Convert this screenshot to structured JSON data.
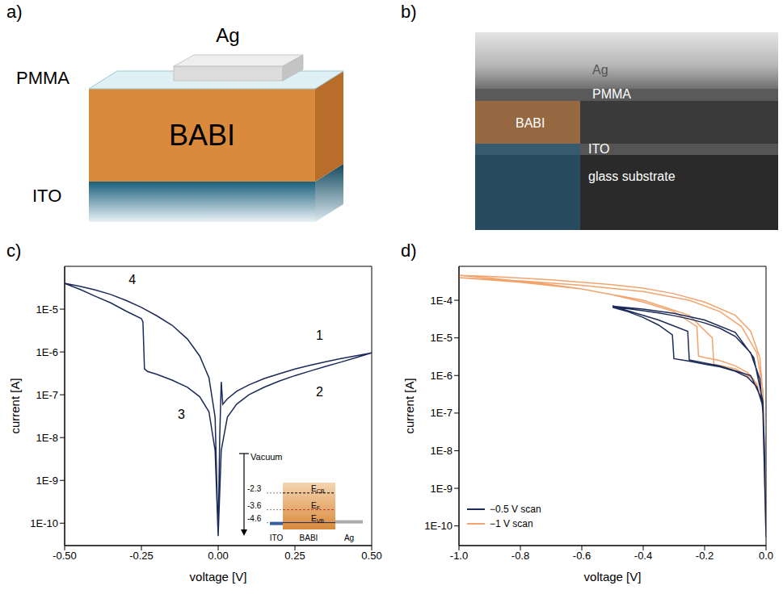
{
  "panel_a": {
    "letter": "a)",
    "labels": {
      "top_contact": "Ag",
      "coating": "PMMA",
      "film": "BABI",
      "electrode": "ITO"
    }
  },
  "panel_b": {
    "letter": "b)",
    "labels": {
      "top_contact": "Ag",
      "coating": "PMMA",
      "film": "BABI",
      "electrode": "ITO",
      "substrate": "glass substrate"
    }
  },
  "chart_data": [
    {
      "letter": "c)",
      "type": "line",
      "x_label": "voltage [V]",
      "y_label": "current [A]",
      "log": "y",
      "grid": false,
      "xlim": [
        -0.5,
        0.5
      ],
      "xticks": [
        {
          "value": -0.5,
          "label": "-0.50"
        },
        {
          "value": -0.25,
          "label": "-0.25"
        },
        {
          "value": 0,
          "label": "0.00"
        },
        {
          "value": 0.25,
          "label": "0.25"
        },
        {
          "value": 0.5,
          "label": "0.50"
        }
      ],
      "ylim": [
        3e-11,
        0.0001
      ],
      "yticks": [
        {
          "value": 1e-10,
          "label": "1E-10"
        },
        {
          "value": 1e-09,
          "label": "1E-9"
        },
        {
          "value": 1e-08,
          "label": "1E-8"
        },
        {
          "value": 1e-07,
          "label": "1E-7"
        },
        {
          "value": 1e-06,
          "label": "1E-6"
        },
        {
          "value": 1e-05,
          "label": "1E-5"
        }
      ],
      "series": [
        {
          "color": "#1c2a5a",
          "x": [
            0,
            0.005,
            0.01,
            0.015,
            0.03,
            0.06,
            0.1,
            0.15,
            0.2,
            0.25,
            0.3,
            0.35,
            0.4,
            0.45,
            0.5,
            0.45,
            0.4,
            0.35,
            0.3,
            0.25,
            0.2,
            0.15,
            0.1,
            0.06,
            0.03,
            0.01,
            0,
            -0.01,
            -0.03,
            -0.06,
            -0.1,
            -0.15,
            -0.2,
            -0.23,
            -0.24,
            -0.245,
            -0.25,
            -0.3,
            -0.35,
            -0.4,
            -0.45,
            -0.5,
            -0.45,
            -0.4,
            -0.35,
            -0.3,
            -0.25,
            -0.2,
            -0.15,
            -0.1,
            -0.06,
            -0.03,
            -0.01,
            0
          ],
          "values": [
            5e-11,
            1e-08,
            2e-07,
            6e-08,
            8e-08,
            1.2e-07,
            1.7e-07,
            2.4e-07,
            3.1e-07,
            4e-07,
            4.9e-07,
            5.9e-07,
            7e-07,
            8.2e-07,
            9.5e-07,
            7.4e-07,
            5.8e-07,
            4.6e-07,
            3.6e-07,
            2.8e-07,
            2.1e-07,
            1.5e-07,
            1e-07,
            6e-08,
            3e-08,
            5e-09,
            5e-11,
            5e-09,
            4e-08,
            9e-08,
            1.5e-07,
            2.2e-07,
            3e-07,
            3.5e-07,
            4e-07,
            5e-06,
            6e-06,
            9e-06,
            1.4e-05,
            2e-05,
            2.9e-05,
            4e-05,
            3.4e-05,
            2.8e-05,
            2.2e-05,
            1.6e-05,
            1.1e-05,
            7e-06,
            4.2e-06,
            2e-06,
            8e-07,
            2.5e-07,
            3e-08,
            5e-11
          ]
        }
      ],
      "annotations": [
        {
          "text": "1",
          "x": 0.33,
          "y": 2.5e-06
        },
        {
          "text": "2",
          "x": 0.33,
          "y": 1.2e-07
        },
        {
          "text": "3",
          "x": -0.12,
          "y": 3.5e-08
        },
        {
          "text": "4",
          "x": -0.28,
          "y": 5e-05
        }
      ],
      "inset": {
        "axis_label": "Vacuum",
        "levels": [
          {
            "value": -2.3,
            "symbol": "E",
            "sub": "CB"
          },
          {
            "value": -3.6,
            "symbol": "E",
            "sub": "F"
          },
          {
            "value": -4.6,
            "symbol": "E",
            "sub": "VB"
          }
        ],
        "materials": [
          "ITO",
          "BABI",
          "Ag"
        ]
      }
    },
    {
      "letter": "d)",
      "type": "line",
      "x_label": "voltage [V]",
      "y_label": "current [A]",
      "log": "y",
      "grid": false,
      "legend": "lower left",
      "xlim": [
        -1.0,
        0.0
      ],
      "xticks": [
        {
          "value": -1.0,
          "label": "-1.0"
        },
        {
          "value": -0.8,
          "label": "-0.8"
        },
        {
          "value": -0.6,
          "label": "-0.6"
        },
        {
          "value": -0.4,
          "label": "-0.4"
        },
        {
          "value": -0.2,
          "label": "-0.2"
        },
        {
          "value": 0,
          "label": "0.0"
        }
      ],
      "ylim": [
        3e-11,
        0.0008
      ],
      "yticks": [
        {
          "value": 1e-10,
          "label": "1E-10"
        },
        {
          "value": 1e-09,
          "label": "1E-9"
        },
        {
          "value": 1e-08,
          "label": "1E-8"
        },
        {
          "value": 1e-07,
          "label": "1E-7"
        },
        {
          "value": 1e-06,
          "label": "1E-6"
        },
        {
          "value": 1e-05,
          "label": "1E-5"
        },
        {
          "value": 0.0001,
          "label": "1E-4"
        }
      ],
      "series": [
        {
          "name": "−0.5 V scan",
          "color": "#1c2a5a",
          "x": [
            0,
            -0.005,
            -0.01,
            -0.03,
            -0.06,
            -0.1,
            -0.15,
            -0.2,
            -0.25,
            -0.3,
            -0.305,
            -0.35,
            -0.4,
            -0.45,
            -0.5,
            -0.45,
            -0.4,
            -0.35,
            -0.3,
            -0.25,
            -0.2,
            -0.15,
            -0.1,
            -0.05,
            -0.02,
            -0.01,
            0,
            0,
            0,
            -0.01,
            -0.05,
            -0.15,
            -0.25,
            -0.255,
            -0.35,
            -0.5,
            -0.4,
            -0.3,
            -0.2,
            -0.1,
            -0.04,
            -0.01,
            0
          ],
          "values": [
            5e-11,
            1e-08,
            1.5e-07,
            5e-07,
            9e-07,
            1.3e-06,
            1.7e-06,
            2e-06,
            2.4e-06,
            2.8e-06,
            1.2e-05,
            2.2e-05,
            3.5e-05,
            5e-05,
            6.5e-05,
            6e-05,
            5.3e-05,
            4.6e-05,
            3.9e-05,
            3.2e-05,
            2.5e-05,
            1.8e-05,
            1.1e-05,
            4e-06,
            8e-07,
            1e-07,
            5e-11,
            null,
            5e-11,
            2e-07,
            1e-06,
            1.8e-06,
            2.6e-06,
            1.5e-05,
            3e-05,
            7e-05,
            5.8e-05,
            4.5e-05,
            3e-05,
            1.4e-05,
            3e-06,
            2e-07,
            5e-11
          ]
        },
        {
          "name": "−1 V scan",
          "color": "#f2a46c",
          "x": [
            0,
            -0.005,
            -0.01,
            -0.03,
            -0.06,
            -0.1,
            -0.15,
            -0.2,
            -0.22,
            -0.225,
            -0.3,
            -0.4,
            -0.5,
            -0.6,
            -0.7,
            -0.8,
            -0.9,
            -1.0,
            -0.9,
            -0.8,
            -0.7,
            -0.6,
            -0.5,
            -0.4,
            -0.3,
            -0.2,
            -0.1,
            -0.05,
            -0.02,
            -0.01,
            0,
            0,
            0,
            -0.01,
            -0.04,
            -0.1,
            -0.17,
            -0.175,
            -0.25,
            -0.4,
            -0.6,
            -0.8,
            -1.0,
            -0.8,
            -0.6,
            -0.4,
            -0.25,
            -0.15,
            -0.08,
            -0.03,
            -0.01,
            0
          ],
          "values": [
            5e-11,
            1e-08,
            1.5e-07,
            6e-07,
            1.2e-06,
            1.8e-06,
            2.5e-06,
            3e-06,
            3.3e-06,
            2e-05,
            5e-05,
            9e-05,
            0.00014,
            0.0002,
            0.00026,
            0.00032,
            0.00039,
            0.00046,
            0.00043,
            0.00039,
            0.00035,
            0.0003,
            0.00026,
            0.00021,
            0.00015,
            9e-05,
            4e-05,
            1.5e-05,
            3e-06,
            3e-07,
            5e-11,
            null,
            5e-11,
            2e-07,
            8e-07,
            1.5e-06,
            2e-06,
            1e-05,
            4e-05,
            0.0001,
            0.0002,
            0.0003,
            0.0004,
            0.00033,
            0.00025,
            0.00017,
            0.0001,
            5e-05,
            2e-05,
            4e-06,
            4e-07,
            5e-11
          ]
        }
      ]
    }
  ]
}
